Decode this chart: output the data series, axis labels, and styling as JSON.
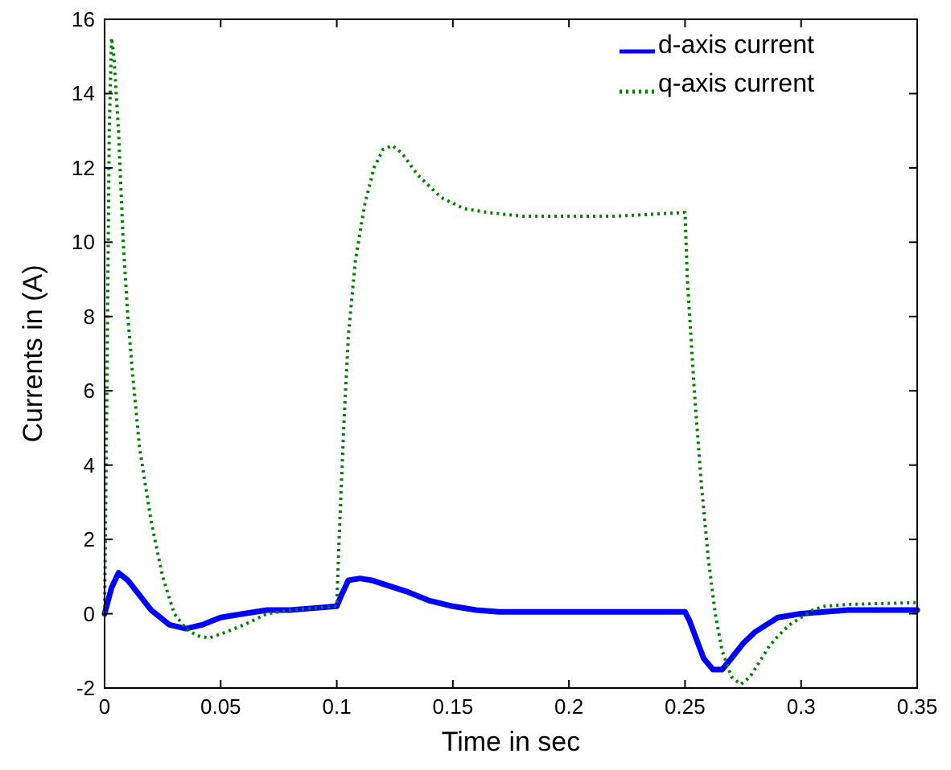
{
  "chart_data": {
    "type": "line",
    "xlabel": "Time in sec",
    "ylabel": "Currents in (A)",
    "xlim": [
      0,
      0.35
    ],
    "ylim": [
      -2,
      16
    ],
    "xticks": [
      0,
      0.05,
      0.1,
      0.15,
      0.2,
      0.25,
      0.3,
      0.35
    ],
    "yticks": [
      -2,
      0,
      2,
      4,
      6,
      8,
      10,
      12,
      14,
      16
    ],
    "grid": false,
    "legend": "top right",
    "marker": "none",
    "series": [
      {
        "name": "d-axis current",
        "color": "#0000ff",
        "line_style": "solid",
        "x": [
          0,
          0.003,
          0.006,
          0.01,
          0.015,
          0.02,
          0.028,
          0.035,
          0.042,
          0.05,
          0.06,
          0.07,
          0.08,
          0.09,
          0.1,
          0.102,
          0.105,
          0.11,
          0.115,
          0.12,
          0.13,
          0.14,
          0.15,
          0.16,
          0.17,
          0.19,
          0.21,
          0.23,
          0.25,
          0.252,
          0.255,
          0.258,
          0.262,
          0.266,
          0.27,
          0.275,
          0.28,
          0.285,
          0.29,
          0.3,
          0.31,
          0.32,
          0.35
        ],
        "values": [
          0,
          0.7,
          1.1,
          0.9,
          0.5,
          0.1,
          -0.3,
          -0.4,
          -0.3,
          -0.1,
          0,
          0.1,
          0.1,
          0.15,
          0.2,
          0.5,
          0.9,
          0.95,
          0.9,
          0.8,
          0.6,
          0.35,
          0.2,
          0.1,
          0.05,
          0.05,
          0.05,
          0.05,
          0.05,
          -0.2,
          -0.7,
          -1.2,
          -1.5,
          -1.5,
          -1.2,
          -0.8,
          -0.5,
          -0.3,
          -0.1,
          0,
          0.05,
          0.1,
          0.1
        ]
      },
      {
        "name": "q-axis current",
        "color": "#008000",
        "line_style": "dotted",
        "x": [
          0,
          0.001,
          0.002,
          0.003,
          0.004,
          0.006,
          0.008,
          0.01,
          0.012,
          0.015,
          0.02,
          0.025,
          0.03,
          0.035,
          0.04,
          0.045,
          0.05,
          0.06,
          0.07,
          0.08,
          0.09,
          0.1,
          0.101,
          0.103,
          0.105,
          0.108,
          0.112,
          0.116,
          0.12,
          0.124,
          0.128,
          0.135,
          0.145,
          0.155,
          0.165,
          0.18,
          0.2,
          0.22,
          0.25,
          0.251,
          0.254,
          0.257,
          0.26,
          0.263,
          0.266,
          0.27,
          0.274,
          0.278,
          0.282,
          0.286,
          0.29,
          0.295,
          0.3,
          0.305,
          0.31,
          0.32,
          0.35
        ],
        "values": [
          0,
          6,
          13,
          15.5,
          15,
          13,
          10,
          8,
          6.5,
          4.5,
          2.5,
          1,
          0,
          -0.4,
          -0.6,
          -0.65,
          -0.55,
          -0.3,
          0,
          0.1,
          0.15,
          0.2,
          2,
          5,
          7.5,
          9.5,
          11,
          12,
          12.5,
          12.6,
          12.4,
          11.8,
          11.2,
          10.9,
          10.8,
          10.7,
          10.7,
          10.7,
          10.8,
          9,
          6,
          3.5,
          1.5,
          0,
          -1,
          -1.7,
          -1.9,
          -1.7,
          -1.3,
          -0.9,
          -0.6,
          -0.3,
          -0.1,
          0.1,
          0.2,
          0.25,
          0.3
        ]
      }
    ]
  }
}
